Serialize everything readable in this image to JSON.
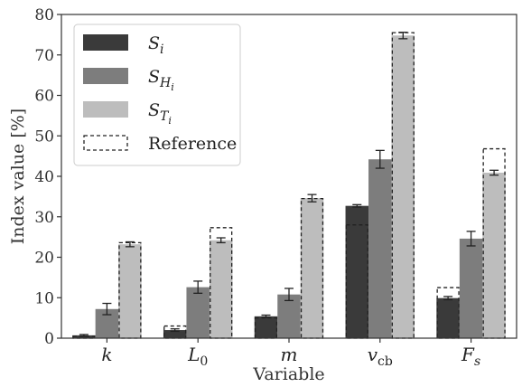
{
  "chart_data": {
    "type": "bar",
    "xlabel": "Variable",
    "ylabel": "Index value [%]",
    "ylim": [
      0,
      80
    ],
    "yticks": [
      0,
      10,
      20,
      30,
      40,
      50,
      60,
      70,
      80
    ],
    "grid": false,
    "legend_position": "top-left",
    "categories": [
      {
        "base": "k",
        "sub": ""
      },
      {
        "base": "L",
        "sub": "0"
      },
      {
        "base": "m",
        "sub": ""
      },
      {
        "base": "v",
        "sub": "cb"
      },
      {
        "base": "F",
        "sub": "s"
      }
    ],
    "series": [
      {
        "name": "S",
        "sub": "i",
        "color": "#3a3a3a",
        "values": [
          0.7,
          2.0,
          5.4,
          32.7,
          9.9
        ],
        "errors": [
          0.2,
          0.3,
          0.3,
          0.3,
          0.4
        ]
      },
      {
        "name": "S",
        "sub": "H",
        "subsub": "i",
        "color": "#7d7d7d",
        "values": [
          7.2,
          12.6,
          10.8,
          44.2,
          24.6
        ],
        "errors": [
          1.4,
          1.5,
          1.5,
          2.2,
          1.8
        ]
      },
      {
        "name": "S",
        "sub": "T",
        "subsub": "i",
        "color": "#bdbdbd",
        "values": [
          23.2,
          24.2,
          34.6,
          74.8,
          40.9
        ],
        "errors": [
          0.6,
          0.6,
          0.9,
          0.8,
          0.6
        ]
      }
    ],
    "reference": {
      "name": "Reference",
      "values": [
        [
          0.5,
          3.0,
          5.0,
          28.0,
          12.5
        ],
        [
          null,
          null,
          null,
          null,
          null
        ],
        [
          23.6,
          27.3,
          34.5,
          75.5,
          46.8
        ]
      ]
    }
  }
}
